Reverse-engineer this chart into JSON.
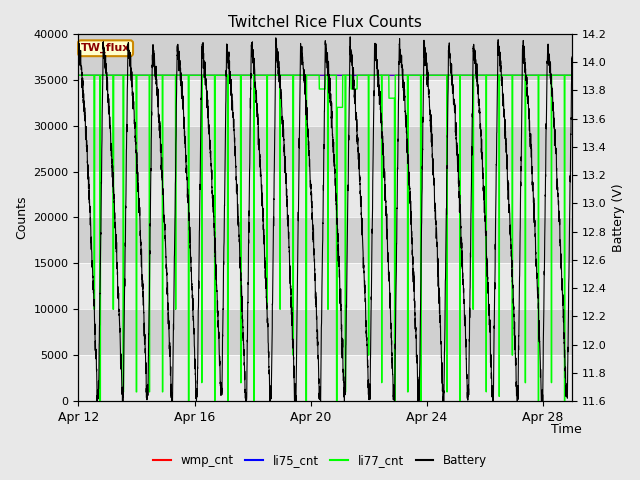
{
  "title": "Twitchel Rice Flux Counts",
  "xlabel": "Time",
  "ylabel_left": "Counts",
  "ylabel_right": "Battery (V)",
  "ylim_left": [
    0,
    40000
  ],
  "ylim_right": [
    11.6,
    14.2
  ],
  "yticks_left": [
    0,
    5000,
    10000,
    15000,
    20000,
    25000,
    30000,
    35000,
    40000
  ],
  "yticks_right": [
    11.6,
    11.8,
    12.0,
    12.2,
    12.4,
    12.6,
    12.8,
    13.0,
    13.2,
    13.4,
    13.6,
    13.8,
    14.0,
    14.2
  ],
  "xtick_labels": [
    "Apr 12",
    "Apr 16",
    "Apr 20",
    "Apr 24",
    "Apr 28"
  ],
  "xtick_positions": [
    0,
    4,
    8,
    12,
    16
  ],
  "tw_flux_label": "TW_flux",
  "fig_facecolor": "#e8e8e8",
  "plot_bg_color": "#d8d8d8",
  "legend": [
    {
      "label": "wmp_cnt",
      "color": "#ff0000"
    },
    {
      "label": "li75_cnt",
      "color": "#0000ff"
    },
    {
      "label": "li77_cnt",
      "color": "#00ff00"
    },
    {
      "label": "Battery",
      "color": "#000000"
    }
  ],
  "li77_base": 35500,
  "battery_min": 11.75,
  "battery_max": 14.1,
  "num_days": 17,
  "figsize": [
    6.4,
    4.8
  ],
  "dpi": 100
}
